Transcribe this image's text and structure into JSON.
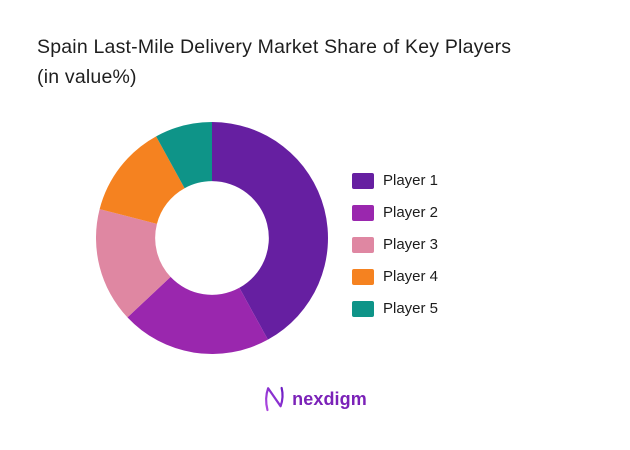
{
  "title": {
    "line1": "Spain Last-Mile Delivery Market Share of Key Players",
    "line2": "(in value%)"
  },
  "chart_data": {
    "type": "pie",
    "subtype": "donut",
    "title": "Spain Last-Mile Delivery Market Share of Key Players (in value%)",
    "unit": "value %",
    "labels": [
      "Player 1",
      "Player 2",
      "Player 3",
      "Player 4",
      "Player 5"
    ],
    "values": [
      42,
      21,
      16,
      13,
      8
    ],
    "colors": [
      "#661fa1",
      "#9a27ae",
      "#df87a2",
      "#f58220",
      "#0e9488"
    ],
    "start_angle_deg": 0,
    "direction": "clockwise",
    "inner_radius_ratio": 0.49,
    "legend_position": "right",
    "data_labels_visible": false
  },
  "logo": {
    "text": "nexdigm",
    "icon": "nexdigm-n-mark",
    "text_color": "#7b22b8",
    "icon_gradient": [
      "#b14be0",
      "#6a1bc2"
    ]
  }
}
